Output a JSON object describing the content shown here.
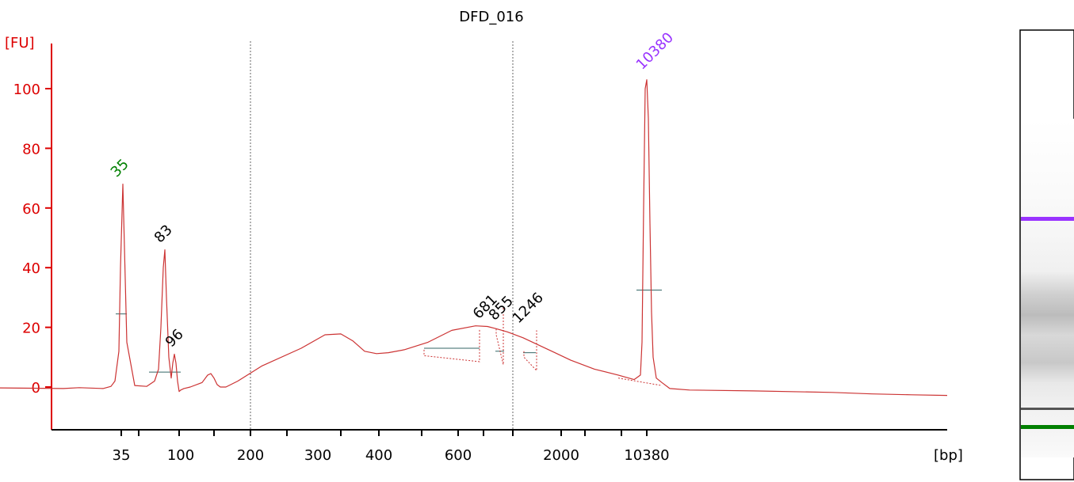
{
  "chart_data": {
    "type": "line",
    "title": "DFD_016",
    "ylabel": "[FU]",
    "xlabel": "[bp]",
    "ylim": [
      -14,
      116
    ],
    "yticks": [
      0,
      20,
      40,
      60,
      80,
      100
    ],
    "xtick_labels": [
      "35",
      "100",
      "200",
      "300",
      "400",
      "600",
      "2000",
      "10380"
    ],
    "series": [
      {
        "x": [
          0,
          80,
          100,
          130,
          140,
          145,
          150,
          152,
          155,
          160,
          170,
          185,
          195,
          200,
          203,
          206,
          208,
          210,
          213,
          216,
          218,
          220,
          222,
          224,
          226,
          228,
          232,
          240,
          255,
          262,
          266,
          270,
          274,
          278,
          285,
          300,
          330,
          380,
          410,
          430,
          445,
          460,
          475,
          490,
          510,
          540,
          570,
          600,
          615,
          625,
          640,
          660,
          680,
          700,
          720,
          750,
          780,
          800,
          808,
          810,
          812,
          814,
          816,
          818,
          820,
          822,
          824,
          828,
          835,
          845,
          870,
          950,
          1050,
          1100,
          1150,
          1195
        ],
        "values": [
          -0.3,
          -0.5,
          -0.2,
          -0.5,
          0.2,
          2,
          12,
          40,
          68,
          15,
          0.5,
          0.2,
          2,
          6,
          20,
          40,
          46,
          30,
          10,
          3,
          8,
          11,
          8,
          2,
          -1.5,
          -1,
          -0.5,
          0,
          1.5,
          4,
          4.5,
          3,
          0.8,
          0,
          0,
          2,
          7,
          13,
          17.5,
          17.8,
          15.5,
          12,
          11.2,
          11.5,
          12.5,
          15,
          19,
          20.5,
          20.3,
          19.6,
          18.5,
          16.5,
          14,
          11.5,
          9,
          6,
          4,
          2.5,
          4,
          15,
          60,
          100,
          103,
          90,
          55,
          25,
          10,
          3,
          1.5,
          -0.5,
          -1,
          -1.3,
          -1.8,
          -2.3,
          -2.6,
          -2.8
        ]
      }
    ],
    "peak_labels": [
      {
        "label": "35",
        "x": 153,
        "y": 68,
        "color": "#008000"
      },
      {
        "label": "83",
        "x": 208,
        "y": 46,
        "color": "#000000"
      },
      {
        "label": "96",
        "x": 222,
        "y": 11,
        "color": "#000000"
      },
      {
        "label": "681",
        "x": 610,
        "y": 20.5,
        "color": "#000000"
      },
      {
        "label": "855",
        "x": 630,
        "y": 20,
        "color": "#000000"
      },
      {
        "label": "1246",
        "x": 660,
        "y": 19,
        "color": "#000000"
      },
      {
        "label": "10380",
        "x": 816,
        "y": 104,
        "color": "#9933ff"
      }
    ],
    "colors": {
      "trace": "#cc3333",
      "axis": "#dd0000",
      "marker_upper": "#9933ff",
      "marker_lower": "#008000",
      "ref_line": "#336666"
    }
  }
}
